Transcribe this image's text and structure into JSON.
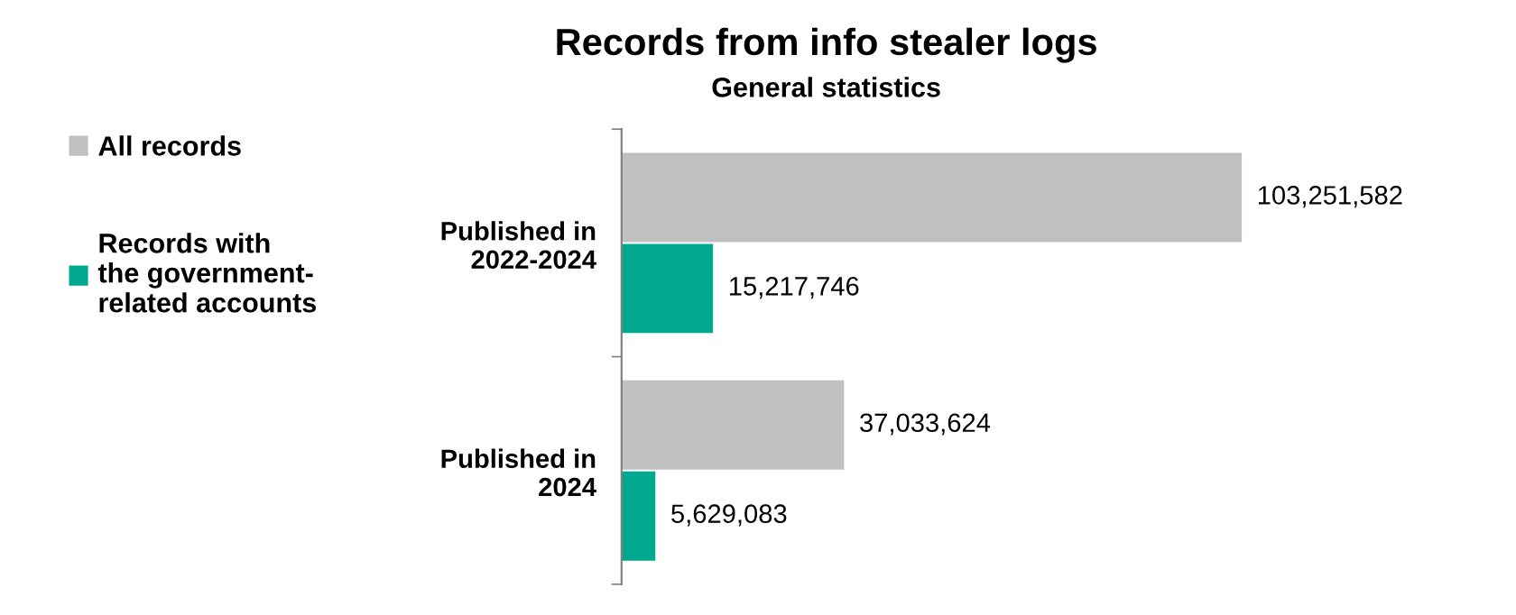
{
  "chart_data": {
    "type": "bar",
    "orientation": "horizontal",
    "title": "Records from info stealer logs",
    "subtitle": "General statistics",
    "categories": [
      "Published in\n2022-2024",
      "Published in\n2024"
    ],
    "series": [
      {
        "name": "All records",
        "color": "#c0c0c0",
        "values": [
          103251582,
          37033624
        ],
        "value_labels": [
          "103,251,582",
          "37,033,624"
        ]
      },
      {
        "name": "Records with\nthe government-\nrelated accounts",
        "color": "#00a88f",
        "values": [
          15217746,
          5629083
        ],
        "value_labels": [
          "15,217,746",
          "5,629,083"
        ]
      }
    ],
    "legend": "left",
    "grid": false
  }
}
